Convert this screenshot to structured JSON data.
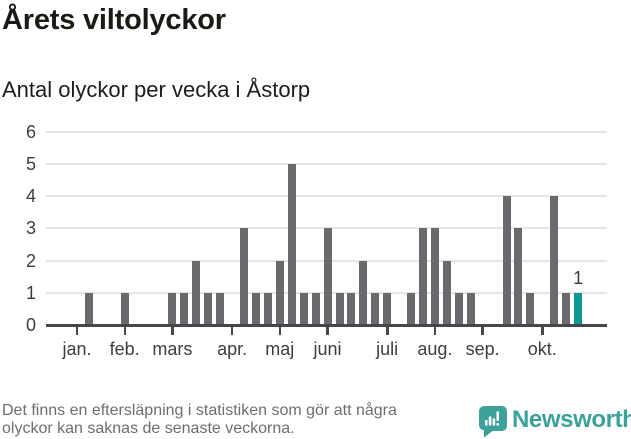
{
  "header": {
    "title": "Årets viltolyckor",
    "subtitle": "Antal olyckor per vecka i Åstorp"
  },
  "chart_data": {
    "type": "bar",
    "title": "Årets viltolyckor",
    "subtitle": "Antal olyckor per vecka i Åstorp",
    "x_unit": "vecka",
    "weeks": [
      1,
      2,
      3,
      4,
      5,
      6,
      7,
      8,
      9,
      10,
      11,
      12,
      13,
      14,
      15,
      16,
      17,
      18,
      19,
      20,
      21,
      22,
      23,
      24,
      25,
      26,
      27,
      28,
      29,
      30,
      31,
      32,
      33,
      34,
      35,
      36,
      37,
      38,
      39,
      40,
      41,
      42,
      43
    ],
    "values": [
      0,
      1,
      0,
      0,
      1,
      0,
      0,
      0,
      1,
      1,
      2,
      1,
      1,
      0,
      3,
      1,
      1,
      2,
      5,
      1,
      1,
      3,
      1,
      1,
      2,
      1,
      1,
      0,
      1,
      3,
      3,
      2,
      1,
      1,
      0,
      0,
      4,
      3,
      1,
      0,
      4,
      1,
      1
    ],
    "highlight_week": 43,
    "highlight_value": 1,
    "highlight_label": "1",
    "ylim": [
      0,
      6
    ],
    "yticks": [
      0,
      1,
      2,
      3,
      4,
      5,
      6
    ],
    "grid": true,
    "legend": false,
    "month_ticks": [
      {
        "label": "jan.",
        "week": 1
      },
      {
        "label": "feb.",
        "week": 5
      },
      {
        "label": "mars",
        "week": 9
      },
      {
        "label": "apr.",
        "week": 14
      },
      {
        "label": "maj",
        "week": 18
      },
      {
        "label": "juni",
        "week": 22
      },
      {
        "label": "juli",
        "week": 27
      },
      {
        "label": "aug.",
        "week": 31
      },
      {
        "label": "sep.",
        "week": 35
      },
      {
        "label": "okt.",
        "week": 40
      }
    ],
    "colors": {
      "bar": "#6a6a6e",
      "highlight": "#0b9a93",
      "grid": "#e4e4e4",
      "axis": "#46464a",
      "label": "#3d3d3d",
      "value_label": "#3c3c3c"
    }
  },
  "footer": {
    "note_lines": [
      "Det finns en eftersläpning i statistiken som gör att några",
      "olyckor kan saknas de senaste veckorna."
    ],
    "brand": "Newsworthy",
    "brand_color": "#3ba19a",
    "brand_icon": "speech-bubble-with-bar-chart-and-exclamation"
  }
}
